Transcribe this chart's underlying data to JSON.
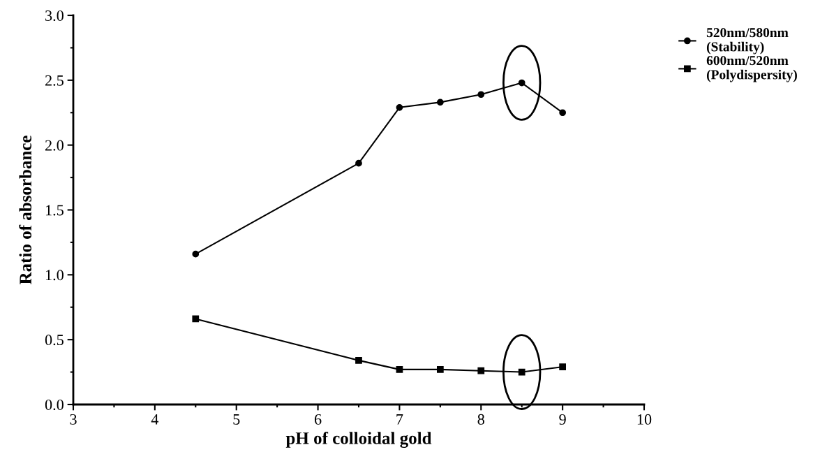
{
  "chart_data": {
    "type": "line",
    "xlabel": "pH of colloidal gold",
    "ylabel": "Ratio of absorbance",
    "x": [
      4.5,
      6.5,
      7,
      7.5,
      8,
      8.5,
      9
    ],
    "series": [
      {
        "name": "520nm/580nm\n(Stability)",
        "color": "#000000",
        "marker": "circle",
        "values": [
          1.16,
          1.86,
          2.29,
          2.33,
          2.39,
          2.48,
          2.25
        ]
      },
      {
        "name": "600nm/520nm\n(Polydispersity)",
        "color": "#000000",
        "marker": "square",
        "values": [
          0.66,
          0.34,
          0.27,
          0.27,
          0.26,
          0.25,
          0.29
        ]
      }
    ],
    "xlim": [
      3,
      10
    ],
    "ylim": [
      0,
      3
    ],
    "xticks": [
      3,
      {
        "value": 3.5,
        "label": null
      },
      4,
      {
        "value": 4.5,
        "label": null
      },
      5,
      {
        "value": 5.5,
        "label": null
      },
      6,
      {
        "value": 6.5,
        "label": null
      },
      7,
      {
        "value": 7.5,
        "label": null
      },
      8,
      {
        "value": 8.5,
        "label": null
      },
      9,
      {
        "value": 9.5,
        "label": null
      },
      10
    ],
    "yticks": [
      {
        "value": 0,
        "label": "0.0"
      },
      {
        "value": 0.25,
        "label": null
      },
      0.5,
      {
        "value": 0.75,
        "label": null
      },
      {
        "value": 1,
        "label": "1.0"
      },
      {
        "value": 1.25,
        "label": null
      },
      1.5,
      {
        "value": 1.75,
        "label": null
      },
      {
        "value": 2,
        "label": "2.0"
      },
      {
        "value": 2.25,
        "label": null
      },
      2.5,
      {
        "value": 2.75,
        "label": null
      },
      {
        "value": 3,
        "label": "3.0"
      }
    ],
    "grid": false,
    "legend": "top right",
    "line_style": "solid"
  }
}
